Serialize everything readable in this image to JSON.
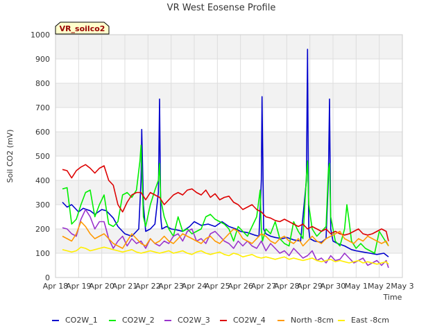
{
  "chart_data": {
    "type": "line",
    "title": "VR West Eosense Profile",
    "xlabel": "Time",
    "ylabel": "Soil CO2 (mV)",
    "ylim": [
      0,
      1000
    ],
    "yticks": [
      0,
      100,
      200,
      300,
      400,
      500,
      600,
      700,
      800,
      900,
      1000
    ],
    "xlim": [
      0,
      15
    ],
    "xticks": [
      {
        "pos": 0,
        "label": "Apr 18"
      },
      {
        "pos": 1,
        "label": "Apr 19"
      },
      {
        "pos": 2,
        "label": "Apr 20"
      },
      {
        "pos": 3,
        "label": "Apr 21"
      },
      {
        "pos": 4,
        "label": "Apr 22"
      },
      {
        "pos": 5,
        "label": "Apr 23"
      },
      {
        "pos": 6,
        "label": "Apr 24"
      },
      {
        "pos": 7,
        "label": "Apr 25"
      },
      {
        "pos": 8,
        "label": "Apr 26"
      },
      {
        "pos": 9,
        "label": "Apr 27"
      },
      {
        "pos": 10,
        "label": "Apr 28"
      },
      {
        "pos": 11,
        "label": "Apr 29"
      },
      {
        "pos": 12,
        "label": "Apr 30"
      },
      {
        "pos": 13,
        "label": "May 1"
      },
      {
        "pos": 14,
        "label": "May 2"
      },
      {
        "pos": 15,
        "label": "May 3"
      }
    ],
    "grid": true,
    "annotation": "VR_soilco2",
    "legend_position": "bottom",
    "series": [
      {
        "name": "CO2W_1",
        "color": "#0000cc",
        "x": [
          0.3,
          0.5,
          0.7,
          1.0,
          1.2,
          1.5,
          1.7,
          2.0,
          2.2,
          2.5,
          2.7,
          3.0,
          3.3,
          3.6,
          3.7,
          3.73,
          3.8,
          3.9,
          4.1,
          4.3,
          4.45,
          4.5,
          4.55,
          4.6,
          4.8,
          5.0,
          5.3,
          5.5,
          5.8,
          6.0,
          6.3,
          6.6,
          6.9,
          7.2,
          7.5,
          7.8,
          8.0,
          8.3,
          8.6,
          8.8,
          8.9,
          8.93,
          9.0,
          9.1,
          9.3,
          9.5,
          9.8,
          10.0,
          10.3,
          10.6,
          10.85,
          10.9,
          10.95,
          11.0,
          11.2,
          11.5,
          11.7,
          11.8,
          11.85,
          11.9,
          12.0,
          12.2,
          12.5,
          12.8,
          13.0,
          13.3,
          13.6,
          13.9,
          14.2,
          14.4
        ],
        "y": [
          310,
          290,
          300,
          270,
          285,
          275,
          260,
          280,
          275,
          245,
          210,
          180,
          170,
          200,
          400,
          610,
          300,
          190,
          200,
          220,
          350,
          735,
          250,
          200,
          210,
          200,
          195,
          190,
          210,
          230,
          215,
          220,
          210,
          230,
          210,
          200,
          190,
          185,
          175,
          170,
          400,
          745,
          200,
          180,
          170,
          165,
          160,
          165,
          155,
          150,
          400,
          940,
          200,
          160,
          150,
          145,
          160,
          400,
          735,
          200,
          150,
          140,
          130,
          115,
          110,
          105,
          100,
          95,
          100,
          85
        ]
      },
      {
        "name": "CO2W_2",
        "color": "#00ee00",
        "x": [
          0.3,
          0.5,
          0.7,
          0.9,
          1.1,
          1.3,
          1.5,
          1.7,
          1.9,
          2.1,
          2.3,
          2.5,
          2.7,
          2.9,
          3.1,
          3.3,
          3.5,
          3.65,
          3.7,
          3.75,
          3.8,
          3.9,
          4.1,
          4.3,
          4.45,
          4.5,
          4.55,
          4.7,
          4.9,
          5.1,
          5.3,
          5.5,
          5.7,
          5.9,
          6.1,
          6.3,
          6.5,
          6.7,
          6.9,
          7.1,
          7.3,
          7.5,
          7.7,
          7.9,
          8.1,
          8.3,
          8.5,
          8.7,
          8.85,
          8.9,
          8.95,
          9.1,
          9.3,
          9.5,
          9.7,
          9.9,
          10.1,
          10.3,
          10.5,
          10.7,
          10.85,
          10.9,
          10.95,
          11.1,
          11.3,
          11.5,
          11.7,
          11.8,
          11.85,
          11.9,
          12.1,
          12.3,
          12.5,
          12.6,
          12.7,
          12.8,
          13.0,
          13.2,
          13.4,
          13.6,
          13.8,
          14.0,
          14.2,
          14.4
        ],
        "y": [
          365,
          370,
          220,
          240,
          300,
          350,
          360,
          250,
          300,
          340,
          220,
          210,
          230,
          340,
          350,
          330,
          360,
          480,
          545,
          400,
          250,
          210,
          300,
          360,
          400,
          470,
          320,
          250,
          200,
          170,
          250,
          190,
          200,
          180,
          190,
          200,
          250,
          260,
          240,
          230,
          220,
          200,
          150,
          210,
          190,
          170,
          210,
          250,
          360,
          200,
          150,
          200,
          180,
          230,
          160,
          140,
          130,
          230,
          190,
          160,
          420,
          480,
          300,
          200,
          170,
          190,
          210,
          440,
          470,
          250,
          150,
          130,
          200,
          300,
          230,
          150,
          120,
          140,
          120,
          110,
          100,
          190,
          160,
          130
        ]
      },
      {
        "name": "CO2W_3",
        "color": "#9933cc",
        "x": [
          0.3,
          0.5,
          0.7,
          0.9,
          1.1,
          1.3,
          1.5,
          1.7,
          1.9,
          2.1,
          2.3,
          2.5,
          2.7,
          2.9,
          3.1,
          3.3,
          3.5,
          3.7,
          3.9,
          4.1,
          4.3,
          4.5,
          4.7,
          4.9,
          5.1,
          5.3,
          5.5,
          5.7,
          5.9,
          6.1,
          6.3,
          6.5,
          6.7,
          6.9,
          7.1,
          7.3,
          7.5,
          7.7,
          7.9,
          8.1,
          8.3,
          8.5,
          8.7,
          8.9,
          9.1,
          9.3,
          9.5,
          9.7,
          9.9,
          10.1,
          10.3,
          10.5,
          10.7,
          10.9,
          11.1,
          11.3,
          11.5,
          11.7,
          11.9,
          12.1,
          12.3,
          12.5,
          12.7,
          12.9,
          13.1,
          13.3,
          13.5,
          13.7,
          13.9,
          14.1,
          14.3,
          14.4
        ],
        "y": [
          205,
          200,
          180,
          170,
          240,
          280,
          250,
          200,
          230,
          230,
          160,
          120,
          150,
          170,
          130,
          160,
          140,
          150,
          120,
          160,
          140,
          130,
          150,
          140,
          170,
          180,
          150,
          190,
          200,
          150,
          160,
          140,
          180,
          190,
          170,
          150,
          140,
          120,
          150,
          130,
          150,
          130,
          120,
          150,
          110,
          140,
          120,
          100,
          110,
          90,
          120,
          100,
          80,
          90,
          110,
          70,
          80,
          60,
          90,
          70,
          75,
          100,
          80,
          60,
          70,
          80,
          50,
          60,
          70,
          50,
          70,
          40
        ]
      },
      {
        "name": "CO2W_4",
        "color": "#dd0000",
        "x": [
          0.3,
          0.5,
          0.7,
          0.9,
          1.1,
          1.3,
          1.5,
          1.7,
          1.9,
          2.1,
          2.3,
          2.5,
          2.7,
          2.9,
          3.1,
          3.3,
          3.5,
          3.7,
          3.9,
          4.1,
          4.3,
          4.5,
          4.7,
          4.9,
          5.1,
          5.3,
          5.5,
          5.7,
          5.9,
          6.1,
          6.3,
          6.5,
          6.7,
          6.9,
          7.1,
          7.3,
          7.5,
          7.7,
          7.9,
          8.1,
          8.3,
          8.5,
          8.7,
          8.9,
          9.1,
          9.3,
          9.5,
          9.7,
          9.9,
          10.1,
          10.3,
          10.5,
          10.7,
          10.9,
          11.1,
          11.3,
          11.5,
          11.7,
          11.9,
          12.1,
          12.3,
          12.5,
          12.7,
          12.9,
          13.1,
          13.3,
          13.5,
          13.7,
          13.9,
          14.1,
          14.3,
          14.4
        ],
        "y": [
          445,
          440,
          410,
          440,
          455,
          465,
          450,
          430,
          450,
          460,
          400,
          380,
          300,
          270,
          310,
          340,
          350,
          350,
          320,
          350,
          340,
          330,
          300,
          320,
          340,
          350,
          340,
          360,
          365,
          350,
          340,
          360,
          330,
          345,
          320,
          330,
          335,
          310,
          300,
          280,
          290,
          300,
          280,
          270,
          250,
          245,
          235,
          230,
          240,
          230,
          220,
          210,
          220,
          200,
          210,
          200,
          190,
          200,
          180,
          190,
          180,
          175,
          180,
          190,
          200,
          180,
          175,
          180,
          190,
          200,
          190,
          150
        ]
      },
      {
        "name": "North -8cm",
        "color": "#ff9900",
        "x": [
          0.3,
          0.5,
          0.7,
          0.9,
          1.1,
          1.3,
          1.5,
          1.7,
          1.9,
          2.1,
          2.3,
          2.5,
          2.7,
          2.9,
          3.1,
          3.3,
          3.5,
          3.7,
          3.9,
          4.1,
          4.3,
          4.5,
          4.7,
          4.9,
          5.1,
          5.3,
          5.5,
          5.7,
          5.9,
          6.1,
          6.3,
          6.5,
          6.7,
          6.9,
          7.1,
          7.3,
          7.5,
          7.7,
          7.9,
          8.1,
          8.3,
          8.5,
          8.7,
          8.9,
          9.1,
          9.3,
          9.5,
          9.7,
          9.9,
          10.1,
          10.3,
          10.5,
          10.7,
          10.9,
          11.1,
          11.3,
          11.5,
          11.7,
          11.9,
          12.1,
          12.3,
          12.5,
          12.7,
          12.9,
          13.1,
          13.3,
          13.5,
          13.7,
          13.9,
          14.1,
          14.3,
          14.4
        ],
        "y": [
          170,
          160,
          150,
          180,
          230,
          210,
          180,
          160,
          170,
          180,
          160,
          140,
          130,
          120,
          150,
          180,
          160,
          140,
          130,
          160,
          140,
          150,
          170,
          150,
          140,
          160,
          180,
          170,
          160,
          150,
          140,
          160,
          170,
          150,
          140,
          160,
          180,
          200,
          190,
          160,
          150,
          140,
          160,
          180,
          170,
          150,
          140,
          160,
          170,
          150,
          140,
          160,
          130,
          150,
          170,
          150,
          140,
          160,
          170,
          180,
          190,
          160,
          150,
          140,
          160,
          150,
          170,
          160,
          150,
          140,
          150,
          130
        ]
      },
      {
        "name": "East -8cm",
        "color": "#ffee00",
        "x": [
          0.3,
          0.5,
          0.7,
          0.9,
          1.1,
          1.3,
          1.5,
          1.7,
          1.9,
          2.1,
          2.3,
          2.5,
          2.7,
          2.9,
          3.1,
          3.3,
          3.5,
          3.7,
          3.9,
          4.1,
          4.3,
          4.5,
          4.7,
          4.9,
          5.1,
          5.3,
          5.5,
          5.7,
          5.9,
          6.1,
          6.3,
          6.5,
          6.7,
          6.9,
          7.1,
          7.3,
          7.5,
          7.7,
          7.9,
          8.1,
          8.3,
          8.5,
          8.7,
          8.9,
          9.1,
          9.3,
          9.5,
          9.7,
          9.9,
          10.1,
          10.3,
          10.5,
          10.7,
          10.9,
          11.1,
          11.3,
          11.5,
          11.7,
          11.9,
          12.1,
          12.3,
          12.5,
          12.7,
          12.9,
          13.1,
          13.3,
          13.5,
          13.7,
          13.9,
          14.1,
          14.3,
          14.4
        ],
        "y": [
          115,
          110,
          105,
          110,
          125,
          120,
          110,
          115,
          120,
          125,
          120,
          115,
          110,
          105,
          110,
          115,
          105,
          100,
          105,
          110,
          105,
          100,
          105,
          110,
          100,
          105,
          110,
          100,
          95,
          105,
          110,
          100,
          95,
          100,
          105,
          95,
          90,
          100,
          95,
          85,
          90,
          95,
          85,
          80,
          85,
          80,
          75,
          80,
          85,
          75,
          80,
          75,
          70,
          75,
          80,
          70,
          65,
          70,
          75,
          65,
          70,
          65,
          60,
          65,
          70,
          60,
          65,
          60,
          55,
          60,
          65,
          55
        ]
      }
    ]
  }
}
